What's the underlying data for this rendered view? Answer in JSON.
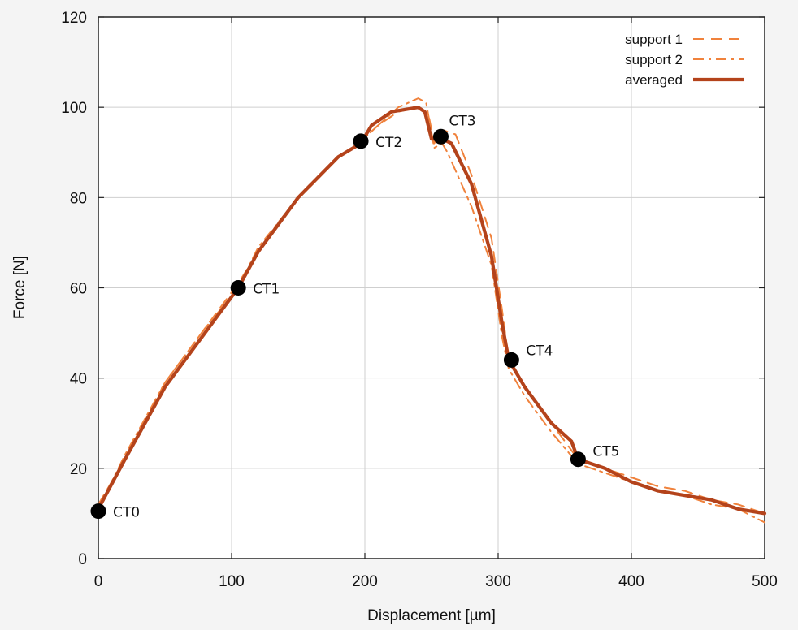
{
  "chart_data": {
    "type": "line",
    "title": "",
    "xlabel": "Displacement [µm]",
    "ylabel": "Force [N]",
    "xlim": [
      0,
      500
    ],
    "ylim": [
      0,
      120
    ],
    "xticks": [
      0,
      100,
      200,
      300,
      400,
      500
    ],
    "yticks": [
      0,
      20,
      40,
      60,
      80,
      100,
      120
    ],
    "grid": true,
    "legend_position": "top-right",
    "series": [
      {
        "name": "support 1",
        "style": "dashed",
        "color": "#f0823c",
        "points": [
          [
            0,
            12
          ],
          [
            20,
            22
          ],
          [
            50,
            39
          ],
          [
            80,
            51
          ],
          [
            105,
            61
          ],
          [
            120,
            68
          ],
          [
            150,
            80
          ],
          [
            180,
            89
          ],
          [
            195,
            92
          ],
          [
            210,
            96
          ],
          [
            225,
            99
          ],
          [
            240,
            100
          ],
          [
            248,
            98
          ],
          [
            252,
            92
          ],
          [
            258,
            95
          ],
          [
            268,
            94
          ],
          [
            280,
            85
          ],
          [
            295,
            71
          ],
          [
            303,
            55
          ],
          [
            308,
            44
          ],
          [
            320,
            38
          ],
          [
            340,
            30
          ],
          [
            360,
            22
          ],
          [
            380,
            20
          ],
          [
            400,
            18
          ],
          [
            420,
            16
          ],
          [
            440,
            15
          ],
          [
            460,
            13
          ],
          [
            480,
            12
          ],
          [
            500,
            10
          ]
        ]
      },
      {
        "name": "support 2",
        "style": "dash-dot",
        "color": "#f0823c",
        "points": [
          [
            0,
            11
          ],
          [
            20,
            23
          ],
          [
            50,
            39
          ],
          [
            80,
            51
          ],
          [
            105,
            60
          ],
          [
            120,
            69
          ],
          [
            150,
            80
          ],
          [
            180,
            89
          ],
          [
            195,
            92
          ],
          [
            210,
            96
          ],
          [
            225,
            100
          ],
          [
            240,
            102
          ],
          [
            246,
            101
          ],
          [
            252,
            91
          ],
          [
            258,
            92
          ],
          [
            262,
            90
          ],
          [
            280,
            78
          ],
          [
            295,
            65
          ],
          [
            303,
            49
          ],
          [
            308,
            42
          ],
          [
            320,
            36
          ],
          [
            340,
            28
          ],
          [
            360,
            21
          ],
          [
            380,
            19
          ],
          [
            400,
            17
          ],
          [
            420,
            15
          ],
          [
            440,
            14
          ],
          [
            460,
            12
          ],
          [
            480,
            11
          ],
          [
            500,
            8
          ]
        ]
      },
      {
        "name": "averaged",
        "style": "solid",
        "color": "#b4431b",
        "points": [
          [
            0,
            11
          ],
          [
            20,
            22
          ],
          [
            50,
            38
          ],
          [
            80,
            50
          ],
          [
            105,
            60
          ],
          [
            120,
            68
          ],
          [
            150,
            80
          ],
          [
            180,
            89
          ],
          [
            197,
            92
          ],
          [
            205,
            96
          ],
          [
            220,
            99
          ],
          [
            240,
            100
          ],
          [
            245,
            99
          ],
          [
            250,
            93
          ],
          [
            258,
            93
          ],
          [
            265,
            92
          ],
          [
            280,
            83
          ],
          [
            295,
            67
          ],
          [
            303,
            52
          ],
          [
            308,
            44
          ],
          [
            320,
            38
          ],
          [
            340,
            30
          ],
          [
            355,
            26
          ],
          [
            360,
            22
          ],
          [
            380,
            20
          ],
          [
            400,
            17
          ],
          [
            420,
            15
          ],
          [
            440,
            14
          ],
          [
            460,
            13
          ],
          [
            480,
            11
          ],
          [
            500,
            10
          ]
        ]
      }
    ],
    "annotations": [
      {
        "label": "CT0",
        "x": 0,
        "y": 10.5
      },
      {
        "label": "CT1",
        "x": 105,
        "y": 60
      },
      {
        "label": "CT2",
        "x": 197,
        "y": 92.5
      },
      {
        "label": "CT3",
        "x": 257,
        "y": 93.5
      },
      {
        "label": "CT4",
        "x": 310,
        "y": 44
      },
      {
        "label": "CT5",
        "x": 360,
        "y": 22
      }
    ]
  }
}
